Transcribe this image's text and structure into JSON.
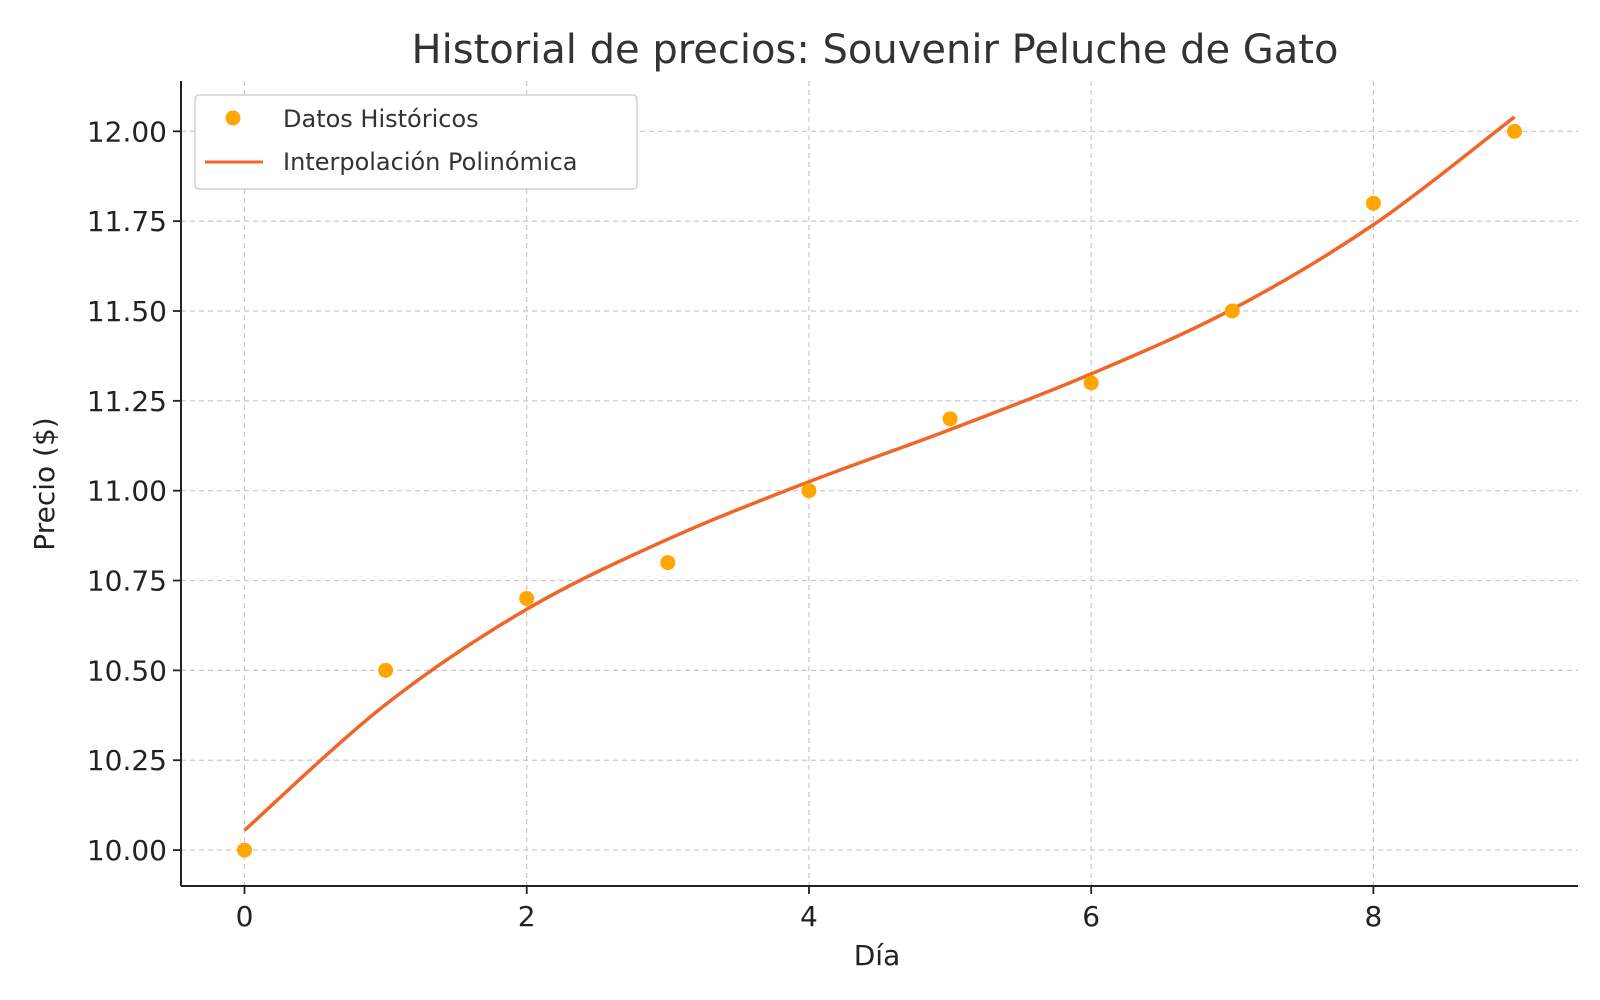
{
  "chart_data": {
    "type": "scatter",
    "title": "Historial de precios: Souvenir Peluche de Gato",
    "xlabel": "Día",
    "ylabel": "Precio ($)",
    "xlim": [
      -0.45,
      9.45
    ],
    "ylim": [
      9.9,
      12.14
    ],
    "x_ticks": [
      0,
      2,
      4,
      6,
      8
    ],
    "y_ticks": [
      10.0,
      10.25,
      10.5,
      10.75,
      11.0,
      11.25,
      11.5,
      11.75,
      12.0
    ],
    "y_tick_labels": [
      "10.00",
      "10.25",
      "10.50",
      "10.75",
      "11.00",
      "11.25",
      "11.50",
      "11.75",
      "12.00"
    ],
    "grid": true,
    "legend_position": "top-left",
    "series": [
      {
        "name": "Datos Históricos",
        "kind": "scatter",
        "color": "#ffa600",
        "x": [
          0,
          1,
          2,
          3,
          4,
          5,
          6,
          7,
          8,
          9
        ],
        "y": [
          10.0,
          10.5,
          10.7,
          10.8,
          11.0,
          11.2,
          11.3,
          11.5,
          11.8,
          12.0
        ]
      },
      {
        "name": "Interpolación Polinómica",
        "kind": "line",
        "color": "#f0652a",
        "x": [
          0,
          1,
          2,
          3,
          4,
          5,
          6,
          7,
          8,
          9
        ],
        "y": [
          10.055,
          10.405,
          10.67,
          10.865,
          11.025,
          11.17,
          11.325,
          11.505,
          11.74,
          12.04
        ]
      }
    ]
  }
}
